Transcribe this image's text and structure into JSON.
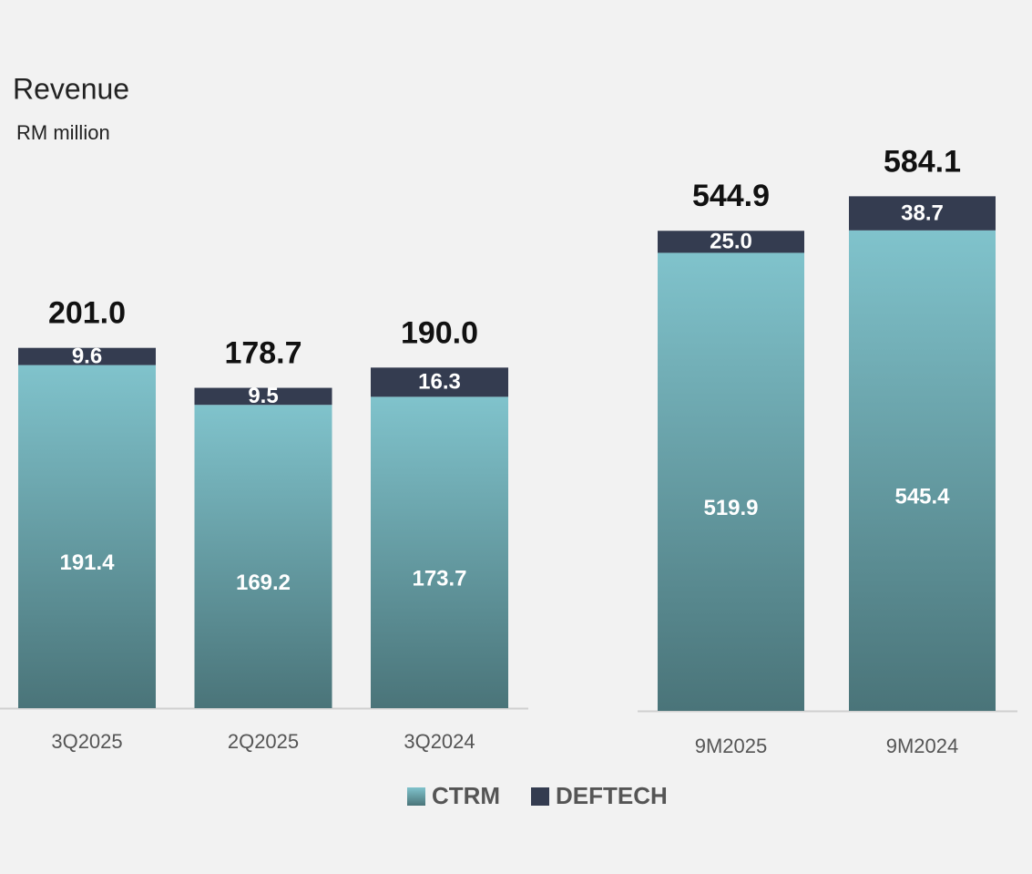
{
  "chart_data": [
    {
      "type": "bar",
      "stacked": true,
      "title": "Revenue",
      "subtitle": "RM million",
      "categories": [
        "3Q2025",
        "2Q2025",
        "3Q2024"
      ],
      "series": [
        {
          "name": "CTRM",
          "color": "#6aa9b1",
          "values": [
            191.4,
            169.2,
            173.7
          ],
          "value_labels": [
            "191.4",
            "169.2",
            "173.7"
          ]
        },
        {
          "name": "DEFTECH",
          "color": "#343c50",
          "values": [
            9.6,
            9.5,
            16.3
          ],
          "value_labels": [
            "9.6",
            "9.5",
            "16.3"
          ]
        }
      ],
      "totals": [
        201,
        178.7,
        190
      ],
      "total_labels": [
        "201.0",
        "178.7",
        "190.0"
      ],
      "ylim": [
        0,
        210
      ]
    },
    {
      "type": "bar",
      "stacked": true,
      "categories": [
        "9M2025",
        "9M2024"
      ],
      "series": [
        {
          "name": "CTRM",
          "color": "#6aa9b1",
          "values": [
            519.9,
            545.4
          ],
          "value_labels": [
            "519.9",
            "545.4"
          ]
        },
        {
          "name": "DEFTECH",
          "color": "#343c50",
          "values": [
            25.0,
            38.7
          ],
          "value_labels": [
            "25.0",
            "38.7"
          ]
        }
      ],
      "totals": [
        544.9,
        584.1
      ],
      "total_labels": [
        "544.9",
        "584.1"
      ],
      "ylim": [
        0,
        600
      ]
    }
  ]
}
